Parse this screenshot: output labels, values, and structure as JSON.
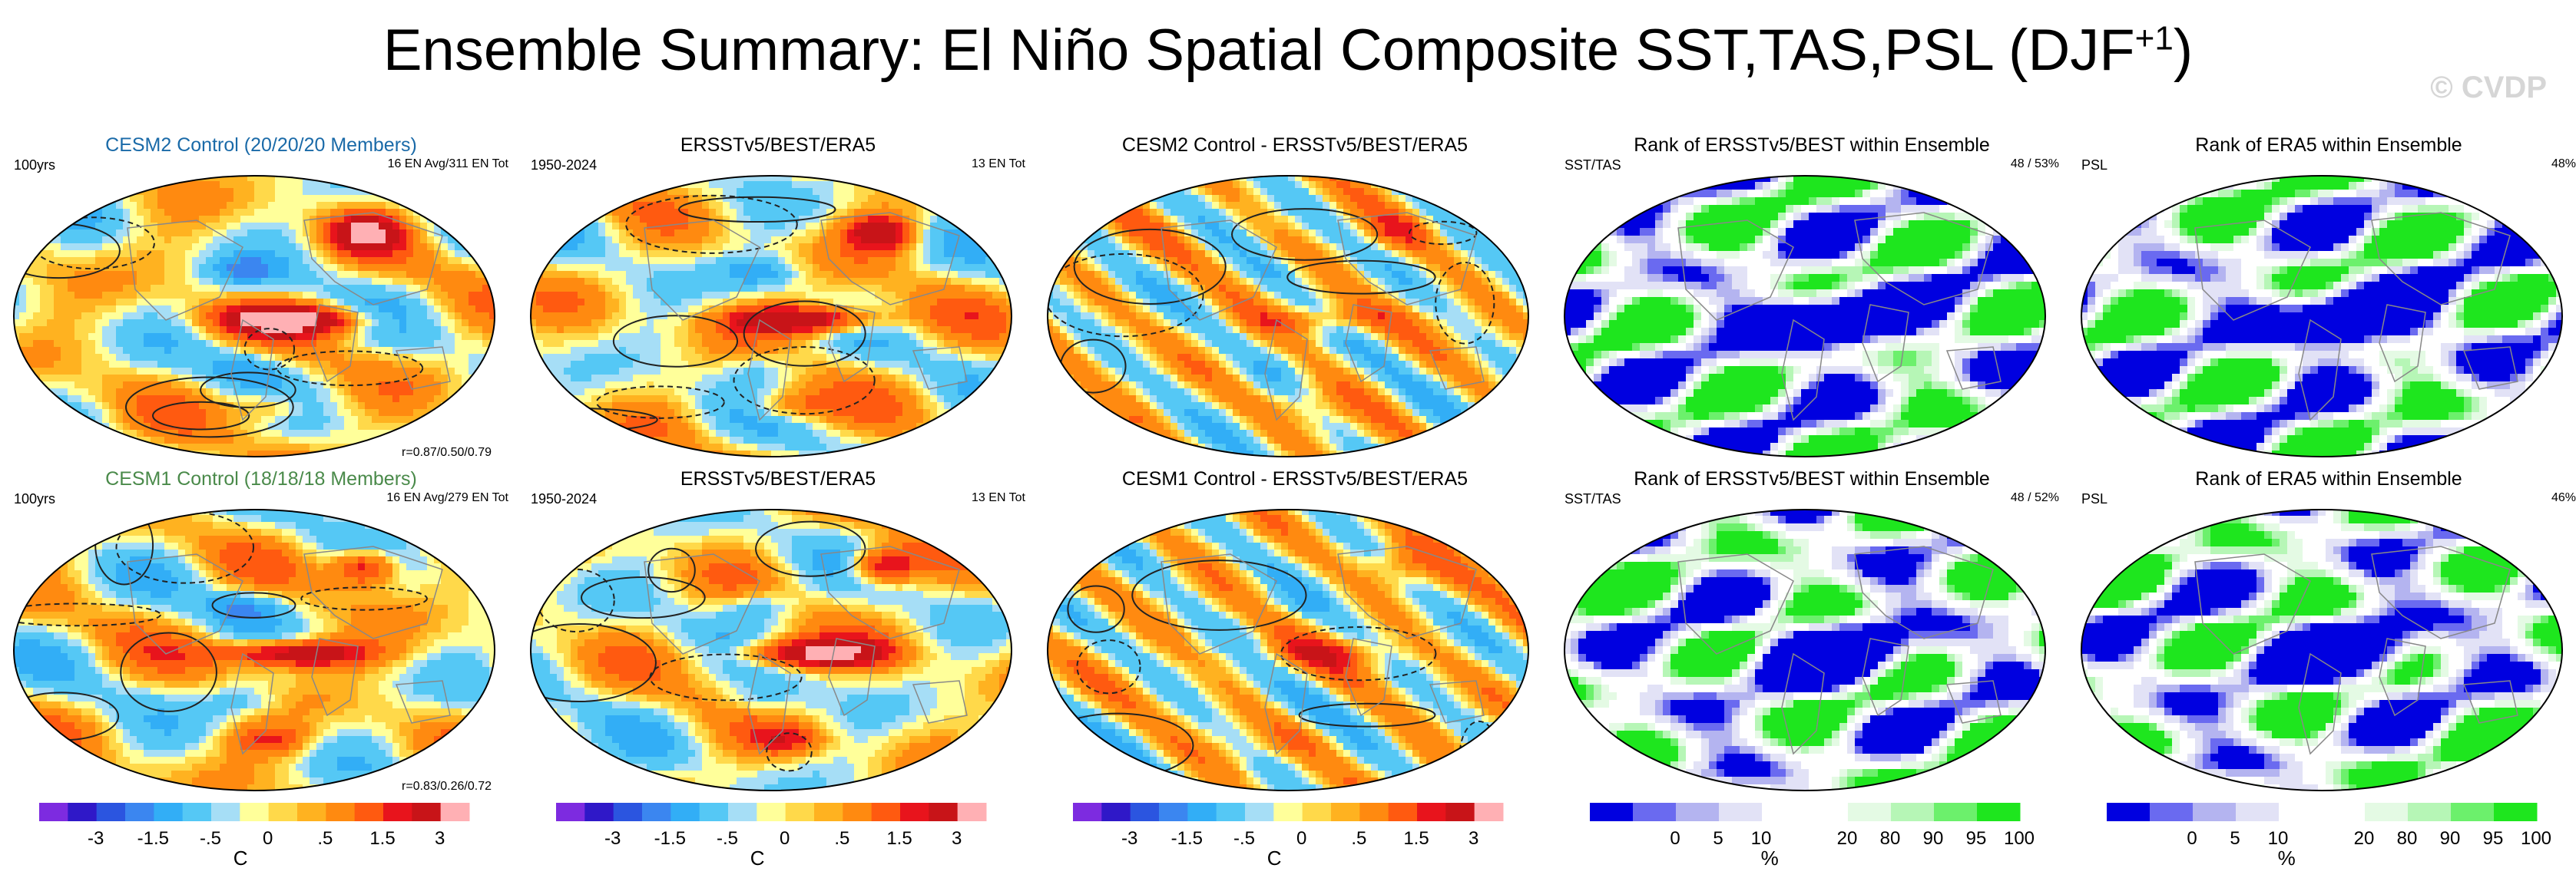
{
  "title_main": "Ensemble Summary: El Niño Spatial Composite SST,TAS,PSL (DJF",
  "title_sup": "+1",
  "title_close": ")",
  "watermark": "© CVDP",
  "colors": {
    "temp_scale": [
      "#7d2be0",
      "#2f18c8",
      "#2b55e0",
      "#3b86f0",
      "#32aef6",
      "#55c8f5",
      "#a6def6",
      "#ffff9a",
      "#ffd94a",
      "#ffb220",
      "#ff8a10",
      "#ff5a10",
      "#e8141c",
      "#c81418",
      "#ffb0b4"
    ],
    "rank_scale": [
      "#0000e0",
      "#6a6af0",
      "#b4b4f0",
      "#e2e2f6",
      "#ffffff",
      "#ffffff",
      "#e4fae4",
      "#b6f6b6",
      "#6cf06c",
      "#1ee61e"
    ],
    "ocean_land_line": "#888888",
    "contour": "#222222"
  },
  "rows": [
    {
      "panels": [
        {
          "title": "CESM2 Control (20/20/20 Members)",
          "title_style": "blue",
          "left_label": "100yrs",
          "right_label": "16 EN Avg/311 EN Tot",
          "bottom_label": "r=0.87/0.50/0.79",
          "kind": "temp"
        },
        {
          "title": "ERSSTv5/BEST/ERA5",
          "title_style": "",
          "left_label": "1950-2024",
          "right_label": "13 EN Tot",
          "bottom_label": "",
          "kind": "temp"
        },
        {
          "title": "CESM2 Control - ERSSTv5/BEST/ERA5",
          "title_style": "",
          "left_label": "",
          "right_label": "",
          "bottom_label": "",
          "kind": "diff"
        },
        {
          "title": "Rank of ERSSTv5/BEST within Ensemble",
          "title_style": "",
          "left_label": "SST/TAS",
          "right_label": "48 /  53%",
          "bottom_label": "",
          "kind": "rank"
        },
        {
          "title": "Rank of ERA5 within Ensemble",
          "title_style": "",
          "left_label": "PSL",
          "right_label": "48%",
          "bottom_label": "",
          "kind": "rank2"
        }
      ]
    },
    {
      "panels": [
        {
          "title": "CESM1 Control (18/18/18 Members)",
          "title_style": "green",
          "left_label": "100yrs",
          "right_label": "16 EN Avg/279 EN Tot",
          "bottom_label": "r=0.83/0.26/0.72",
          "kind": "temp"
        },
        {
          "title": "ERSSTv5/BEST/ERA5",
          "title_style": "",
          "left_label": "1950-2024",
          "right_label": "13 EN Tot",
          "bottom_label": "",
          "kind": "temp"
        },
        {
          "title": "CESM1 Control - ERSSTv5/BEST/ERA5",
          "title_style": "",
          "left_label": "",
          "right_label": "",
          "bottom_label": "",
          "kind": "diff"
        },
        {
          "title": "Rank of ERSSTv5/BEST within Ensemble",
          "title_style": "",
          "left_label": "SST/TAS",
          "right_label": "48 /  52%",
          "bottom_label": "",
          "kind": "rank"
        },
        {
          "title": "Rank of ERA5 within Ensemble",
          "title_style": "",
          "left_label": "PSL",
          "right_label": "46%",
          "bottom_label": "",
          "kind": "rank2"
        }
      ]
    }
  ],
  "chart_data": {
    "type": "heatmap",
    "title": "Ensemble Summary: El Niño Spatial Composite SST,TAS,PSL (DJF+1)",
    "projection": "global Robinson-like",
    "temperature_colorbar": {
      "unit": "C",
      "tick_labels": [
        "-3",
        "-1.5",
        "-.5",
        "0",
        ".5",
        "1.5",
        "3"
      ],
      "levels": [
        -4,
        -3,
        -2,
        -1.5,
        -1,
        -0.5,
        -0.25,
        0,
        0.25,
        0.5,
        1,
        1.5,
        2,
        3,
        4
      ]
    },
    "rank_colorbar": {
      "unit": "%",
      "tick_labels": [
        "0",
        "5",
        "10",
        "20",
        "80",
        "90",
        "95",
        "100"
      ],
      "levels": [
        0,
        5,
        10,
        20,
        50,
        80,
        90,
        95,
        100
      ]
    },
    "pattern_correlations": [
      {
        "model": "CESM2 Control",
        "r": [
          0.87,
          0.5,
          0.79
        ]
      },
      {
        "model": "CESM1 Control",
        "r": [
          0.83,
          0.26,
          0.72
        ]
      }
    ],
    "rank_percent": [
      {
        "row": "CESM2",
        "sst": 48,
        "tas": 53,
        "psl": 48
      },
      {
        "row": "CESM1",
        "sst": 48,
        "tas": 52,
        "psl": 46
      }
    ]
  }
}
